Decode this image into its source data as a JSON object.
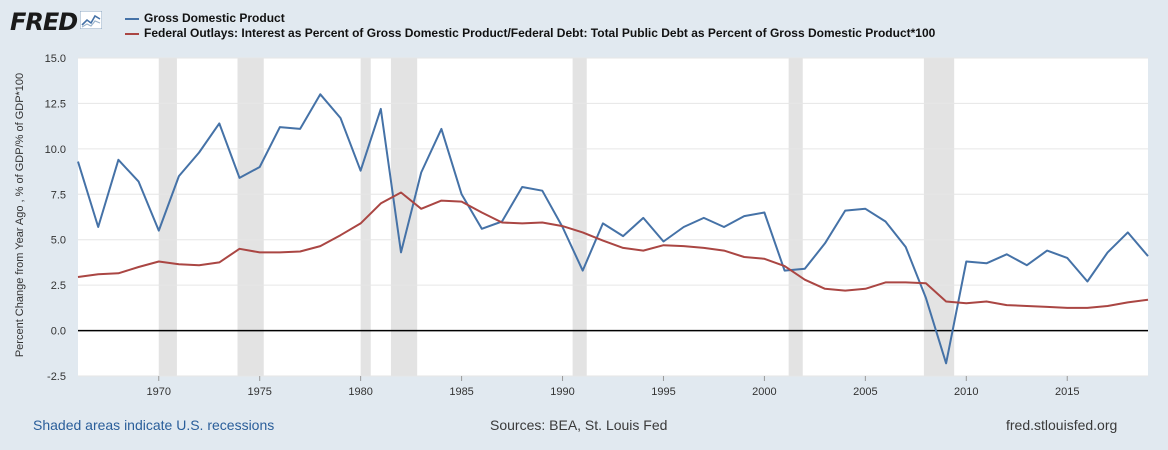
{
  "logo": {
    "text": "FRED"
  },
  "chart_data": {
    "type": "line",
    "title": "",
    "xlabel": "",
    "ylabel": "Percent Change from Year Ago , % of GDP/% of GDP*100",
    "xlim": [
      1966,
      2019
    ],
    "ylim": [
      -2.5,
      15
    ],
    "y_ticks": [
      "15.0",
      "12.5",
      "10.0",
      "7.5",
      "5.0",
      "2.5",
      "0.0",
      "-2.5"
    ],
    "y_tick_values": [
      15,
      12.5,
      10,
      7.5,
      5,
      2.5,
      0,
      -2.5
    ],
    "x_ticks": [
      "1970",
      "1975",
      "1980",
      "1985",
      "1990",
      "1995",
      "2000",
      "2005",
      "2010",
      "2015"
    ],
    "x_tick_values": [
      1970,
      1975,
      1980,
      1985,
      1990,
      1995,
      2000,
      2005,
      2010,
      2015
    ],
    "recessions": [
      [
        1970.0,
        1970.9
      ],
      [
        1973.9,
        1975.2
      ],
      [
        1980.0,
        1980.5
      ],
      [
        1981.5,
        1982.8
      ],
      [
        1990.5,
        1991.2
      ],
      [
        2001.2,
        2001.9
      ],
      [
        2007.9,
        2009.4
      ]
    ],
    "series": [
      {
        "name": "Gross Domestic Product",
        "color": "#4572a7",
        "x": [
          1966,
          1967,
          1968,
          1969,
          1970,
          1971,
          1972,
          1973,
          1974,
          1975,
          1976,
          1977,
          1978,
          1979,
          1980,
          1981,
          1982,
          1983,
          1984,
          1985,
          1986,
          1987,
          1988,
          1989,
          1990,
          1991,
          1992,
          1993,
          1994,
          1995,
          1996,
          1997,
          1998,
          1999,
          2000,
          2001,
          2002,
          2003,
          2004,
          2005,
          2006,
          2007,
          2008,
          2009,
          2010,
          2011,
          2012,
          2013,
          2014,
          2015,
          2016,
          2017,
          2018,
          2019
        ],
        "values": [
          9.3,
          5.7,
          9.4,
          8.2,
          5.5,
          8.5,
          9.8,
          11.4,
          8.4,
          9.0,
          11.2,
          11.1,
          13.0,
          11.7,
          8.8,
          12.2,
          4.3,
          8.7,
          11.1,
          7.5,
          5.6,
          6.0,
          7.9,
          7.7,
          5.7,
          3.3,
          5.9,
          5.2,
          6.2,
          4.9,
          5.7,
          6.2,
          5.7,
          6.3,
          6.5,
          3.3,
          3.4,
          4.8,
          6.6,
          6.7,
          6.0,
          4.6,
          1.8,
          -1.8,
          3.8,
          3.7,
          4.2,
          3.6,
          4.4,
          4.0,
          2.7,
          4.3,
          5.4,
          4.1
        ]
      },
      {
        "name": "Federal Outlays: Interest as Percent of Gross Domestic Product/Federal Debt: Total Public Debt as Percent of Gross Domestic Product*100",
        "color": "#aa4643",
        "x": [
          1966,
          1967,
          1968,
          1969,
          1970,
          1971,
          1972,
          1973,
          1974,
          1975,
          1976,
          1977,
          1978,
          1979,
          1980,
          1981,
          1982,
          1983,
          1984,
          1985,
          1986,
          1987,
          1988,
          1989,
          1990,
          1991,
          1992,
          1993,
          1994,
          1995,
          1996,
          1997,
          1998,
          1999,
          2000,
          2001,
          2002,
          2003,
          2004,
          2005,
          2006,
          2007,
          2008,
          2009,
          2010,
          2011,
          2012,
          2013,
          2014,
          2015,
          2016,
          2017,
          2018,
          2019
        ],
        "values": [
          2.95,
          3.1,
          3.15,
          3.5,
          3.8,
          3.65,
          3.6,
          3.75,
          4.5,
          4.3,
          4.3,
          4.35,
          4.65,
          5.25,
          5.9,
          7.0,
          7.6,
          6.7,
          7.15,
          7.1,
          6.5,
          5.95,
          5.9,
          5.95,
          5.75,
          5.4,
          4.95,
          4.55,
          4.4,
          4.7,
          4.65,
          4.55,
          4.4,
          4.05,
          3.95,
          3.55,
          2.8,
          2.3,
          2.2,
          2.3,
          2.65,
          2.65,
          2.6,
          1.6,
          1.5,
          1.6,
          1.4,
          1.35,
          1.3,
          1.25,
          1.25,
          1.35,
          1.55,
          1.7
        ]
      }
    ]
  },
  "footer": {
    "left": "Shaded areas indicate U.S. recessions",
    "center": "Sources: BEA, St. Louis Fed",
    "right": "fred.stlouisfed.org"
  }
}
